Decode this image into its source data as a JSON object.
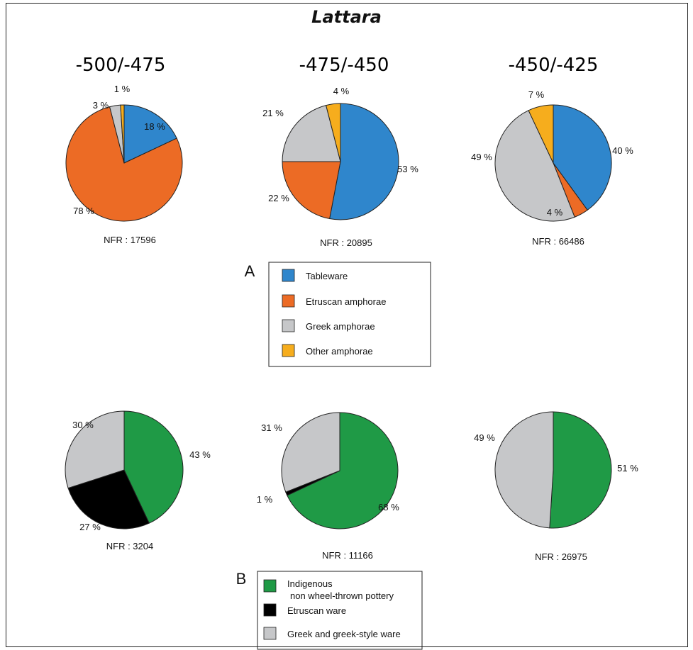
{
  "title": "Lattara",
  "periods": [
    "-500/-475",
    "-475/-450",
    "-450/-425"
  ],
  "colors": {
    "tableware": "#2f86cc",
    "etruscan_amphorae": "#ec6b25",
    "greek_amphorae": "#c6c7c9",
    "other_amphorae": "#f6ad1d",
    "indigenous": "#1f9a46",
    "etruscan_ware": "#000000",
    "greek_ware": "#c6c7c9"
  },
  "panels": {
    "A": {
      "label": "A",
      "legend": [
        "Tableware",
        "Etruscan amphorae",
        "Greek amphorae",
        "Other amphorae"
      ]
    },
    "B": {
      "label": "B",
      "legend": [
        "Indigenous",
        "non wheel-thrown pottery",
        "Etruscan ware",
        "Greek and greek-style ware"
      ]
    }
  },
  "chart_data": [
    {
      "type": "pie",
      "title": "-500/-475",
      "note": "NFR : 17596",
      "slices": [
        {
          "name": "Tableware",
          "value": 18,
          "label": "18 %"
        },
        {
          "name": "Etruscan amphorae",
          "value": 78,
          "label": "78 %"
        },
        {
          "name": "Greek amphorae",
          "value": 3,
          "label": "3 %"
        },
        {
          "name": "Other amphorae",
          "value": 1,
          "label": "1 %"
        }
      ]
    },
    {
      "type": "pie",
      "title": "-475/-450",
      "note": "NFR : 20895",
      "slices": [
        {
          "name": "Tableware",
          "value": 53,
          "label": "53 %"
        },
        {
          "name": "Etruscan amphorae",
          "value": 22,
          "label": "22 %"
        },
        {
          "name": "Greek amphorae",
          "value": 21,
          "label": "21 %"
        },
        {
          "name": "Other amphorae",
          "value": 4,
          "label": "4 %"
        }
      ]
    },
    {
      "type": "pie",
      "title": "-450/-425",
      "note": "NFR : 66486",
      "slices": [
        {
          "name": "Tableware",
          "value": 40,
          "label": "40 %"
        },
        {
          "name": "Etruscan amphorae",
          "value": 4,
          "label": "4 %"
        },
        {
          "name": "Greek amphorae",
          "value": 49,
          "label": "49 %"
        },
        {
          "name": "Other amphorae",
          "value": 7,
          "label": "7 %"
        }
      ]
    },
    {
      "type": "pie",
      "note": "NFR : 3204",
      "slices": [
        {
          "name": "Indigenous non wheel-thrown pottery",
          "value": 43,
          "label": "43 %"
        },
        {
          "name": "Etruscan ware",
          "value": 27,
          "label": "27 %"
        },
        {
          "name": "Greek and greek-style ware",
          "value": 30,
          "label": "30 %"
        }
      ]
    },
    {
      "type": "pie",
      "note": "NFR : 11166",
      "slices": [
        {
          "name": "Indigenous non wheel-thrown pottery",
          "value": 68,
          "label": "68 %"
        },
        {
          "name": "Etruscan ware",
          "value": 1,
          "label": "1 %"
        },
        {
          "name": "Greek and greek-style ware",
          "value": 31,
          "label": "31 %"
        }
      ]
    },
    {
      "type": "pie",
      "note": "NFR : 26975",
      "slices": [
        {
          "name": "Indigenous non wheel-thrown pottery",
          "value": 51,
          "label": "51 %"
        },
        {
          "name": "Greek and greek-style ware",
          "value": 49,
          "label": "49 %"
        }
      ]
    }
  ]
}
